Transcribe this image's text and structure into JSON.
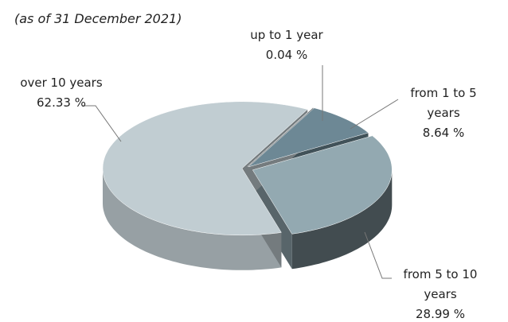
{
  "chart_data": {
    "type": "pie3d",
    "subtitle": "(as of 31 December 2021)",
    "categories": [
      "up to 1 year",
      "from 1 to 5 years",
      "from 5 to 10 years",
      "over 10 years"
    ],
    "values": [
      0.04,
      8.64,
      28.99,
      62.33
    ],
    "value_labels": [
      "0.04 %",
      "8.64 %",
      "28.99 %",
      "62.33 %"
    ],
    "colors": [
      "#8c979c",
      "#6d8895",
      "#93a9b1",
      "#c1cdd2"
    ]
  }
}
